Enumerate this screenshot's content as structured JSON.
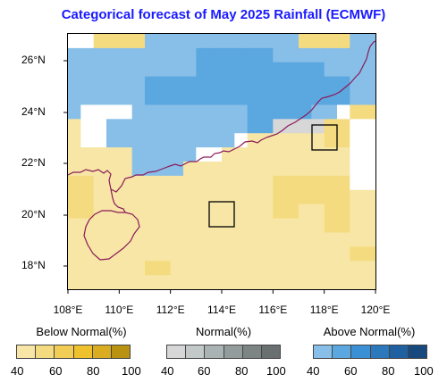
{
  "title": "Categorical forecast of May 2025 Rainfall (ECMWF)",
  "axes": {
    "lon_ticks": [
      "108°E",
      "110°E",
      "112°E",
      "114°E",
      "116°E",
      "118°E",
      "120°E"
    ],
    "lat_ticks": [
      "26°N",
      "24°N",
      "22°N",
      "20°N",
      "18°N"
    ]
  },
  "colors": {
    "below": [
      "#f7e6a5",
      "#f5db80",
      "#f2cd55",
      "#efc22d",
      "#d9ad1f",
      "#b99212"
    ],
    "normal": [
      "#d7d7d7",
      "#c3c9c9",
      "#aab3b3",
      "#929c9c",
      "#7c8484",
      "#6a7070"
    ],
    "above": [
      "#87bfe8",
      "#5ba7e0",
      "#3b8fd4",
      "#2c78bc",
      "#1f61a0",
      "#17497e"
    ],
    "coast": "#8a1a5a"
  },
  "legend": {
    "below": {
      "label": "Below Normal(%)",
      "ticks": [
        "40",
        "60",
        "80",
        "100"
      ]
    },
    "normal": {
      "label": "Normal(%)",
      "ticks": [
        "40",
        "60",
        "80",
        "100"
      ]
    },
    "above": {
      "label": "Above Normal(%)",
      "ticks": [
        "40",
        "60",
        "80",
        "100"
      ]
    }
  },
  "grid": {
    "rows": [
      "W W B1 B1 B1 B1 A0 A0 A0 A0 A0 A0 A0 A0 A0 A0 A0 A0 B1 B1 B1 B1 A0 A0",
      "A0 A0 A0 A0 A0 A0 A0 A0 A0 A0 A1 A1 A1 A1 A1 A1 A0 A0 A0 A0 A0 A0 A0 A0",
      "A0 A0 A0 A0 A0 A0 A0 A0 A0 A0 A1 A1 A1 A1 A1 A1 A1 A1 A1 A1 A0 A0 A0 A0",
      "A0 A0 A0 A0 A0 A0 A1 A1 A1 A1 A1 A1 A1 A1 A1 A1 A1 A1 A1 A1 A1 A1 A0 A0",
      "A0 A0 A0 A0 A0 A0 A1 A1 A1 A1 A1 A1 A1 A1 A1 A1 A1 A1 A1 A1 A1 A1 A0 A0",
      "A0 W W W W A0 A0 A0 A0 A0 A0 A0 A0 A0 A1 A1 A1 A1 A1 A0 A0 W B1 B1",
      "B0 W W A0 A0 A0 A0 A0 A0 A0 A0 A0 A0 A0 A1 A1 N0 N0 N0 N0 B1 B1 W W",
      "B0 W W A0 A0 A0 A0 A0 A0 A0 A0 A0 A0 W B0 B0 B0 B0 B0 B0 B1 B1 W W",
      "B0 B0 B0 B0 B0 A0 A0 A0 A0 A0 W W B0 B0 B0 B0 B0 B0 B0 B0 B0 B0 W W",
      "B0 B0 B0 B0 B0 A0 A0 A0 A0 B0 B0 B0 B0 B0 B0 B0 B0 B0 B0 B0 B0 B0 W W",
      "B1 B1 B0 B0 B0 B0 B0 B0 B0 B0 B0 B0 B0 B0 B0 B0 B1 B1 B1 B1 B1 B1 W W",
      "B1 B1 B0 B0 B0 B0 B0 B0 B0 B0 B0 B0 B0 B0 B0 B0 B1 B1 B1 B1 B1 B1 B0 B0",
      "B1 B1 B0 B0 B0 B0 B0 B0 B0 B0 B0 B0 B0 B0 B0 B0 B1 B1 B0 B0 B1 B1 B0 B0",
      "B0 B0 B0 B0 B0 B0 B0 B0 B0 B0 B0 B0 B0 B0 B0 B0 B0 B0 B0 B0 B1 B1 B0 B0",
      "B0 B0 B0 B0 B0 B0 B0 B0 B0 B0 B0 B0 B0 B0 B0 B0 B0 B0 B0 B0 B0 B0 B0 B0",
      "B0 B0 B0 B0 B0 B0 B0 B0 B0 B0 B0 B0 B0 B0 B0 B0 B0 B0 B0 B0 B0 B0 B1 B1",
      "B0 B0 B0 B0 B0 B0 B1 B1 B0 B0 B0 B0 B0 B0 B0 B0 B0 B0 B0 B0 B0 B0 B0 B0",
      "B0 B0 B0 B0 B0 B0 B0 B0 B0 B0 B0 B0 B0 B0 B0 B0 B0 B0 B0 B0 B0 B0 B0 B0"
    ]
  }
}
